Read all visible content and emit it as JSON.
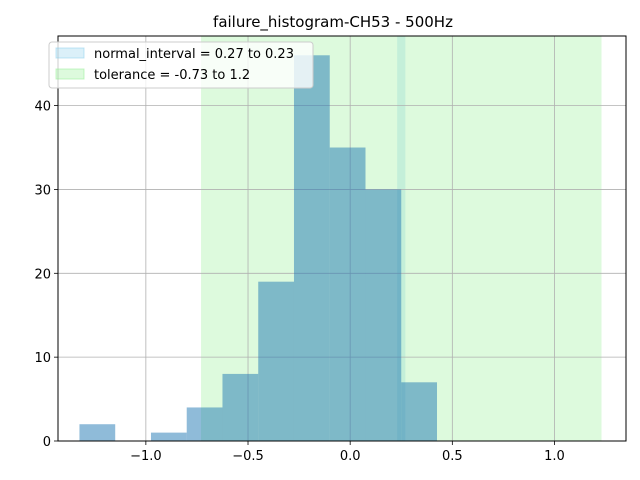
{
  "chart_data": {
    "type": "bar",
    "title": "failure_histogram-CH53 - 500Hz",
    "xlabel": "",
    "ylabel": "",
    "xlim": [
      -1.43,
      1.35
    ],
    "ylim": [
      0,
      48.3
    ],
    "x_ticks": [
      -1.0,
      -0.5,
      0.0,
      0.5,
      1.0
    ],
    "x_tick_labels": [
      "−1.0",
      "−0.5",
      "0.0",
      "0.5",
      "1.0"
    ],
    "y_ticks": [
      0,
      10,
      20,
      30,
      40
    ],
    "y_tick_labels": [
      "0",
      "10",
      "20",
      "30",
      "40"
    ],
    "grid": true,
    "legend_position": "top-left",
    "bins": [
      {
        "x0": -1.325,
        "x1": -1.15,
        "count": 2
      },
      {
        "x0": -1.15,
        "x1": -0.975,
        "count": 0
      },
      {
        "x0": -0.975,
        "x1": -0.8,
        "count": 1
      },
      {
        "x0": -0.8,
        "x1": -0.625,
        "count": 4
      },
      {
        "x0": -0.625,
        "x1": -0.45,
        "count": 8
      },
      {
        "x0": -0.45,
        "x1": -0.275,
        "count": 19
      },
      {
        "x0": -0.275,
        "x1": -0.1,
        "count": 46
      },
      {
        "x0": -0.1,
        "x1": 0.075,
        "count": 35
      },
      {
        "x0": 0.075,
        "x1": 0.25,
        "count": 30
      },
      {
        "x0": 0.25,
        "x1": 0.425,
        "count": 7
      }
    ],
    "bar_color": "#1f77b4",
    "bar_alpha": 0.5,
    "spans": [
      {
        "name": "normal_interval = 0.27 to 0.23",
        "x0": 0.23,
        "x1": 0.27,
        "color": "#87ceeb",
        "alpha": 0.3
      },
      {
        "name": "tolerance = -0.73 to 1.2",
        "x0": -0.73,
        "x1": 1.23,
        "color": "#90ee90",
        "alpha": 0.3
      }
    ]
  }
}
